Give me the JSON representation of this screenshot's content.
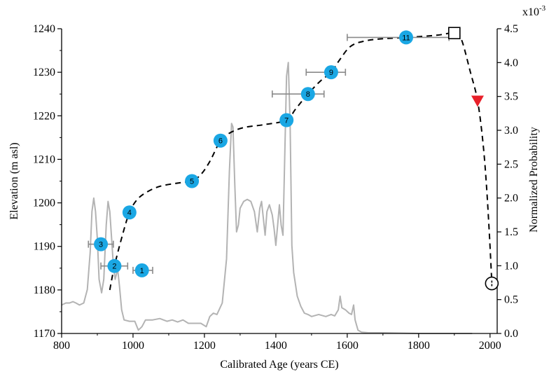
{
  "chart_data": {
    "type": "scatter",
    "xlabel": "Calibrated Age (years CE)",
    "ylabel": "Elevation (m asl)",
    "y2label": "Normalized Probability",
    "y2_multiplier": "x10",
    "y2_exponent": "-3",
    "xlim": [
      800,
      2020
    ],
    "ylim": [
      1170,
      1240
    ],
    "y2lim": [
      0.0,
      4.5
    ],
    "xticks": [
      800,
      1000,
      1200,
      1400,
      1600,
      1800,
      2000
    ],
    "yticks": [
      1170,
      1180,
      1190,
      1200,
      1210,
      1220,
      1230,
      1240
    ],
    "y2ticks": [
      "0.0",
      "0.5",
      "1.0",
      "1.5",
      "2.0",
      "2.5",
      "3.0",
      "3.5",
      "4.0",
      "4.5"
    ],
    "grid": false,
    "colors": {
      "points": "#1aa7e4",
      "probability_curve": "#b3b3b3",
      "trend_line": "#000000",
      "error_bars": "#8a8a8a",
      "triangle_marker": "#e8202a"
    },
    "dated_points": [
      {
        "label": "1",
        "x": 1025,
        "y": 1184.5,
        "xerr": [
          1000,
          1055
        ]
      },
      {
        "label": "2",
        "x": 948,
        "y": 1185.5,
        "xerr": [
          910,
          985
        ]
      },
      {
        "label": "3",
        "x": 910,
        "y": 1190.5,
        "xerr": [
          875,
          945
        ]
      },
      {
        "label": "4",
        "x": 990,
        "y": 1197.8,
        "xerr": null
      },
      {
        "label": "5",
        "x": 1165,
        "y": 1205.0,
        "xerr": null
      },
      {
        "label": "6",
        "x": 1245,
        "y": 1214.3,
        "xerr": [
          1235,
          1258
        ]
      },
      {
        "label": "7",
        "x": 1430,
        "y": 1219.0,
        "xerr": null
      },
      {
        "label": "8",
        "x": 1490,
        "y": 1225.0,
        "xerr": [
          1390,
          1535
        ]
      },
      {
        "label": "9",
        "x": 1555,
        "y": 1230.0,
        "xerr": [
          1485,
          1595
        ]
      },
      {
        "label": "11",
        "x": 1765,
        "y": 1238.0,
        "xerr": [
          1600,
          1885
        ]
      }
    ],
    "square_marker": {
      "x": 1900,
      "y": 1239.0
    },
    "circle_marker": {
      "x": 2005,
      "y": 1181.5
    },
    "triangle_marker": {
      "x": 1965,
      "y": 1223.5
    },
    "trend_line": [
      [
        935,
        1180.0
      ],
      [
        948,
        1185.5
      ],
      [
        970,
        1192.5
      ],
      [
        990,
        1197.8
      ],
      [
        1010,
        1200.6
      ],
      [
        1035,
        1202.3
      ],
      [
        1075,
        1203.8
      ],
      [
        1130,
        1204.6
      ],
      [
        1165,
        1205.0
      ],
      [
        1190,
        1206.5
      ],
      [
        1215,
        1209.5
      ],
      [
        1245,
        1214.3
      ],
      [
        1270,
        1216.0
      ],
      [
        1310,
        1217.3
      ],
      [
        1370,
        1218.0
      ],
      [
        1430,
        1219.0
      ],
      [
        1455,
        1221.5
      ],
      [
        1490,
        1225.0
      ],
      [
        1525,
        1228.0
      ],
      [
        1555,
        1230.0
      ],
      [
        1580,
        1233.0
      ],
      [
        1610,
        1236.0
      ],
      [
        1650,
        1237.2
      ],
      [
        1700,
        1237.7
      ],
      [
        1765,
        1238.0
      ],
      [
        1850,
        1238.5
      ],
      [
        1900,
        1239.0
      ],
      [
        1920,
        1237.5
      ],
      [
        1945,
        1230.0
      ],
      [
        1965,
        1223.5
      ],
      [
        1980,
        1214.0
      ],
      [
        1990,
        1204.0
      ],
      [
        1998,
        1193.0
      ],
      [
        2005,
        1181.5
      ]
    ],
    "probability_curve": [
      [
        800,
        0.42
      ],
      [
        812,
        0.45
      ],
      [
        822,
        0.45
      ],
      [
        832,
        0.47
      ],
      [
        840,
        0.45
      ],
      [
        850,
        0.42
      ],
      [
        862,
        0.45
      ],
      [
        872,
        0.65
      ],
      [
        880,
        1.2
      ],
      [
        885,
        1.8
      ],
      [
        890,
        2.0
      ],
      [
        895,
        1.8
      ],
      [
        900,
        1.4
      ],
      [
        905,
        0.8
      ],
      [
        912,
        0.6
      ],
      [
        918,
        0.8
      ],
      [
        925,
        1.6
      ],
      [
        930,
        1.95
      ],
      [
        935,
        1.8
      ],
      [
        940,
        1.4
      ],
      [
        945,
        1.0
      ],
      [
        950,
        0.8
      ],
      [
        957,
        0.95
      ],
      [
        962,
        0.7
      ],
      [
        968,
        0.35
      ],
      [
        975,
        0.2
      ],
      [
        990,
        0.18
      ],
      [
        1005,
        0.18
      ],
      [
        1015,
        0.05
      ],
      [
        1025,
        0.1
      ],
      [
        1035,
        0.2
      ],
      [
        1055,
        0.2
      ],
      [
        1075,
        0.22
      ],
      [
        1095,
        0.18
      ],
      [
        1110,
        0.2
      ],
      [
        1125,
        0.17
      ],
      [
        1140,
        0.2
      ],
      [
        1155,
        0.15
      ],
      [
        1170,
        0.15
      ],
      [
        1190,
        0.15
      ],
      [
        1205,
        0.1
      ],
      [
        1215,
        0.25
      ],
      [
        1225,
        0.3
      ],
      [
        1235,
        0.28
      ],
      [
        1250,
        0.45
      ],
      [
        1262,
        1.1
      ],
      [
        1270,
        2.4
      ],
      [
        1276,
        3.1
      ],
      [
        1280,
        3.05
      ],
      [
        1285,
        2.2
      ],
      [
        1290,
        1.5
      ],
      [
        1295,
        1.6
      ],
      [
        1300,
        1.85
      ],
      [
        1310,
        1.95
      ],
      [
        1320,
        1.98
      ],
      [
        1330,
        1.95
      ],
      [
        1340,
        1.8
      ],
      [
        1348,
        1.5
      ],
      [
        1355,
        1.85
      ],
      [
        1360,
        1.95
      ],
      [
        1365,
        1.7
      ],
      [
        1370,
        1.45
      ],
      [
        1375,
        1.8
      ],
      [
        1382,
        1.9
      ],
      [
        1390,
        1.75
      ],
      [
        1395,
        1.55
      ],
      [
        1400,
        1.3
      ],
      [
        1405,
        1.6
      ],
      [
        1410,
        1.9
      ],
      [
        1415,
        1.6
      ],
      [
        1420,
        1.45
      ],
      [
        1425,
        2.6
      ],
      [
        1430,
        3.8
      ],
      [
        1435,
        4.0
      ],
      [
        1440,
        3.1
      ],
      [
        1445,
        1.3
      ],
      [
        1450,
        0.9
      ],
      [
        1460,
        0.55
      ],
      [
        1470,
        0.4
      ],
      [
        1480,
        0.3
      ],
      [
        1490,
        0.28
      ],
      [
        1500,
        0.25
      ],
      [
        1520,
        0.28
      ],
      [
        1540,
        0.25
      ],
      [
        1555,
        0.28
      ],
      [
        1565,
        0.26
      ],
      [
        1575,
        0.35
      ],
      [
        1580,
        0.55
      ],
      [
        1585,
        0.38
      ],
      [
        1595,
        0.35
      ],
      [
        1605,
        0.3
      ],
      [
        1612,
        0.28
      ],
      [
        1618,
        0.42
      ],
      [
        1622,
        0.2
      ],
      [
        1630,
        0.05
      ],
      [
        1640,
        0.02
      ],
      [
        1660,
        0.01
      ],
      [
        1700,
        0.01
      ],
      [
        1800,
        0.0
      ],
      [
        1950,
        0.0
      ]
    ]
  }
}
